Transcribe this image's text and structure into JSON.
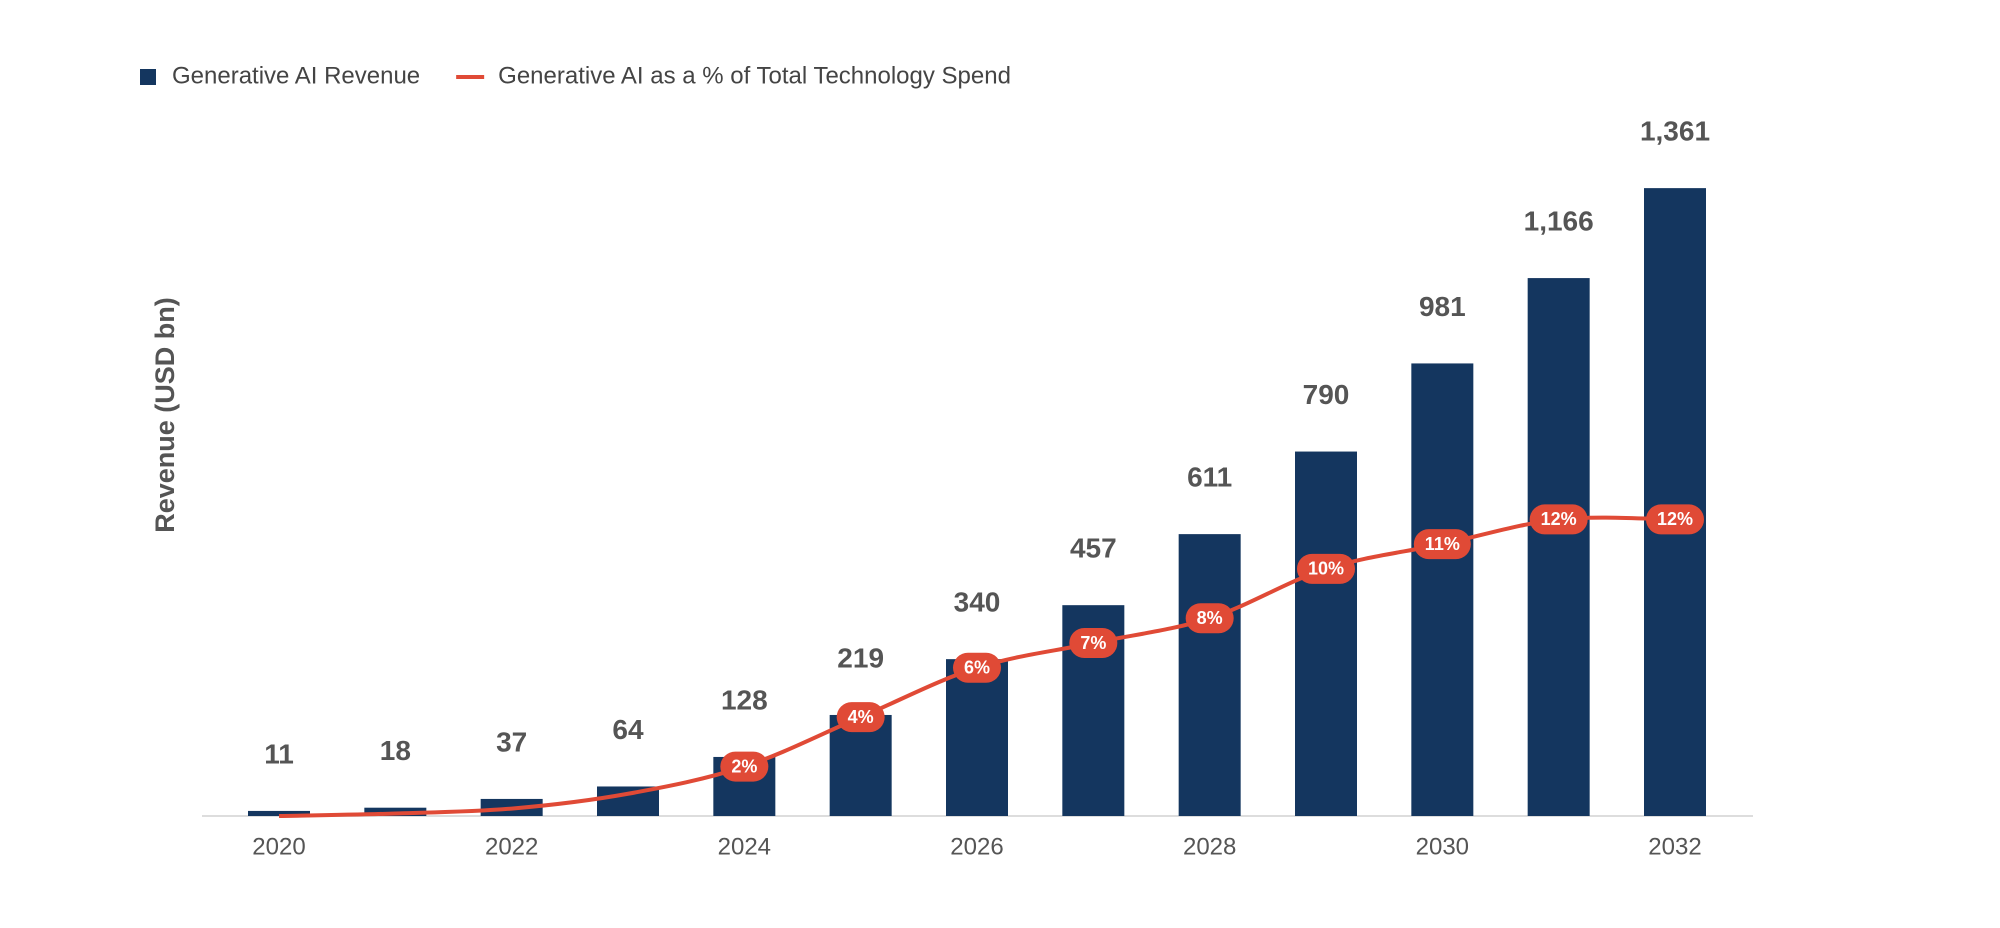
{
  "chart_data": {
    "type": "bar",
    "y_label": "Revenue (USD bn)",
    "categories": [
      "2020",
      null,
      "2022",
      null,
      "2024",
      null,
      "2026",
      null,
      "2028",
      null,
      "2030",
      null,
      "2032"
    ],
    "series": [
      {
        "name": "Generative AI Revenue",
        "type": "bar",
        "color": "#14365f",
        "values": [
          11,
          18,
          37,
          64,
          128,
          219,
          340,
          457,
          611,
          790,
          981,
          1166,
          1361
        ],
        "value_labels": [
          "11",
          "18",
          "37",
          "64",
          "128",
          "219",
          "340",
          "457",
          "611",
          "790",
          "981",
          "1,166",
          "1,361"
        ]
      },
      {
        "name": "Generative AI as a % of Total Technology Spend",
        "type": "line",
        "axis": "y2",
        "color": "#e04a36",
        "values": [
          0,
          0.1,
          0.3,
          0.9,
          2,
          4,
          6,
          7,
          8,
          10,
          11,
          12,
          12
        ],
        "value_labels": [
          null,
          null,
          null,
          null,
          "2%",
          "4%",
          "6%",
          "7%",
          "8%",
          "10%",
          "11%",
          "12%",
          "12%"
        ]
      }
    ],
    "ylim": [
      0,
      1500
    ],
    "y2lim": [
      0,
      28
    ],
    "legend": "top-left"
  }
}
